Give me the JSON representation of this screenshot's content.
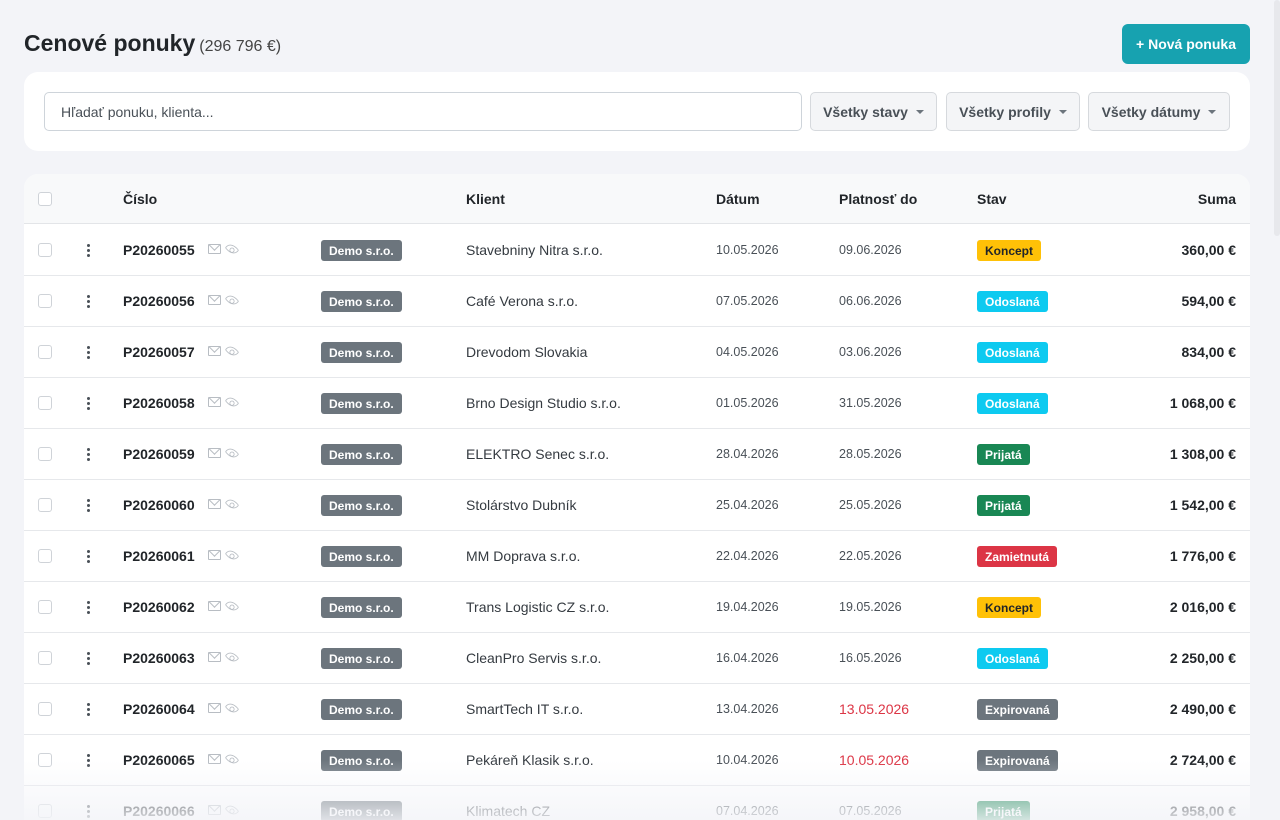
{
  "header": {
    "title": "Cenové ponuky",
    "total": "(296 796 €)",
    "new_button_label": "+ Nová ponuka"
  },
  "filters": {
    "search_placeholder": "Hľadať ponuku, klienta...",
    "status_label": "Všetky stavy",
    "profile_label": "Všetky profily",
    "date_label": "Všetky dátumy"
  },
  "table": {
    "columns": {
      "number": "Číslo",
      "client": "Klient",
      "date": "Dátum",
      "valid_until": "Platnosť do",
      "status": "Stav",
      "sum": "Suma"
    },
    "rows": [
      {
        "number": "P20260055",
        "profile": "Demo s.r.o.",
        "client": "Stavebniny Nitra s.r.o.",
        "date": "10.05.2026",
        "valid_until": "09.06.2026",
        "expired": false,
        "status": "Koncept",
        "status_key": "koncept",
        "sum": "360,00 €"
      },
      {
        "number": "P20260056",
        "profile": "Demo s.r.o.",
        "client": "Café Verona s.r.o.",
        "date": "07.05.2026",
        "valid_until": "06.06.2026",
        "expired": false,
        "status": "Odoslaná",
        "status_key": "odoslana",
        "sum": "594,00 €"
      },
      {
        "number": "P20260057",
        "profile": "Demo s.r.o.",
        "client": "Drevodom Slovakia",
        "date": "04.05.2026",
        "valid_until": "03.06.2026",
        "expired": false,
        "status": "Odoslaná",
        "status_key": "odoslana",
        "sum": "834,00 €"
      },
      {
        "number": "P20260058",
        "profile": "Demo s.r.o.",
        "client": "Brno Design Studio s.r.o.",
        "date": "01.05.2026",
        "valid_until": "31.05.2026",
        "expired": false,
        "status": "Odoslaná",
        "status_key": "odoslana",
        "sum": "1 068,00 €"
      },
      {
        "number": "P20260059",
        "profile": "Demo s.r.o.",
        "client": "ELEKTRO Senec s.r.o.",
        "date": "28.04.2026",
        "valid_until": "28.05.2026",
        "expired": false,
        "status": "Prijatá",
        "status_key": "prijata",
        "sum": "1 308,00 €"
      },
      {
        "number": "P20260060",
        "profile": "Demo s.r.o.",
        "client": "Stolárstvo Dubník",
        "date": "25.04.2026",
        "valid_until": "25.05.2026",
        "expired": false,
        "status": "Prijatá",
        "status_key": "prijata",
        "sum": "1 542,00 €"
      },
      {
        "number": "P20260061",
        "profile": "Demo s.r.o.",
        "client": "MM Doprava s.r.o.",
        "date": "22.04.2026",
        "valid_until": "22.05.2026",
        "expired": false,
        "status": "Zamietnutá",
        "status_key": "zamietnuta",
        "sum": "1 776,00 €"
      },
      {
        "number": "P20260062",
        "profile": "Demo s.r.o.",
        "client": "Trans Logistic CZ s.r.o.",
        "date": "19.04.2026",
        "valid_until": "19.05.2026",
        "expired": false,
        "status": "Koncept",
        "status_key": "koncept",
        "sum": "2 016,00 €"
      },
      {
        "number": "P20260063",
        "profile": "Demo s.r.o.",
        "client": "CleanPro Servis s.r.o.",
        "date": "16.04.2026",
        "valid_until": "16.05.2026",
        "expired": false,
        "status": "Odoslaná",
        "status_key": "odoslana",
        "sum": "2 250,00 €"
      },
      {
        "number": "P20260064",
        "profile": "Demo s.r.o.",
        "client": "SmartTech IT s.r.o.",
        "date": "13.04.2026",
        "valid_until": "13.05.2026",
        "expired": true,
        "status": "Expirovaná",
        "status_key": "expirovana",
        "sum": "2 490,00 €"
      },
      {
        "number": "P20260065",
        "profile": "Demo s.r.o.",
        "client": "Pekáreň Klasik s.r.o.",
        "date": "10.04.2026",
        "valid_until": "10.05.2026",
        "expired": true,
        "status": "Expirovaná",
        "status_key": "expirovana",
        "sum": "2 724,00 €"
      },
      {
        "number": "P20260066",
        "profile": "Demo s.r.o.",
        "client": "Klimatech CZ",
        "date": "07.04.2026",
        "valid_until": "07.05.2026",
        "expired": false,
        "status": "Prijatá",
        "status_key": "prijata",
        "sum": "2 958,00 €"
      }
    ]
  },
  "colors": {
    "accent": "#17a2b0",
    "koncept": "#ffc107",
    "odoslana": "#0dcaf0",
    "prijata": "#198754",
    "zamietnuta": "#dc3545",
    "expirovana": "#6c757d",
    "expired_date": "#dc3545"
  },
  "icons": {
    "row_actions": "kebab-menu-icon",
    "sent": "mail-icon",
    "viewed": "eye-icon",
    "dropdown": "caret-down-icon"
  }
}
